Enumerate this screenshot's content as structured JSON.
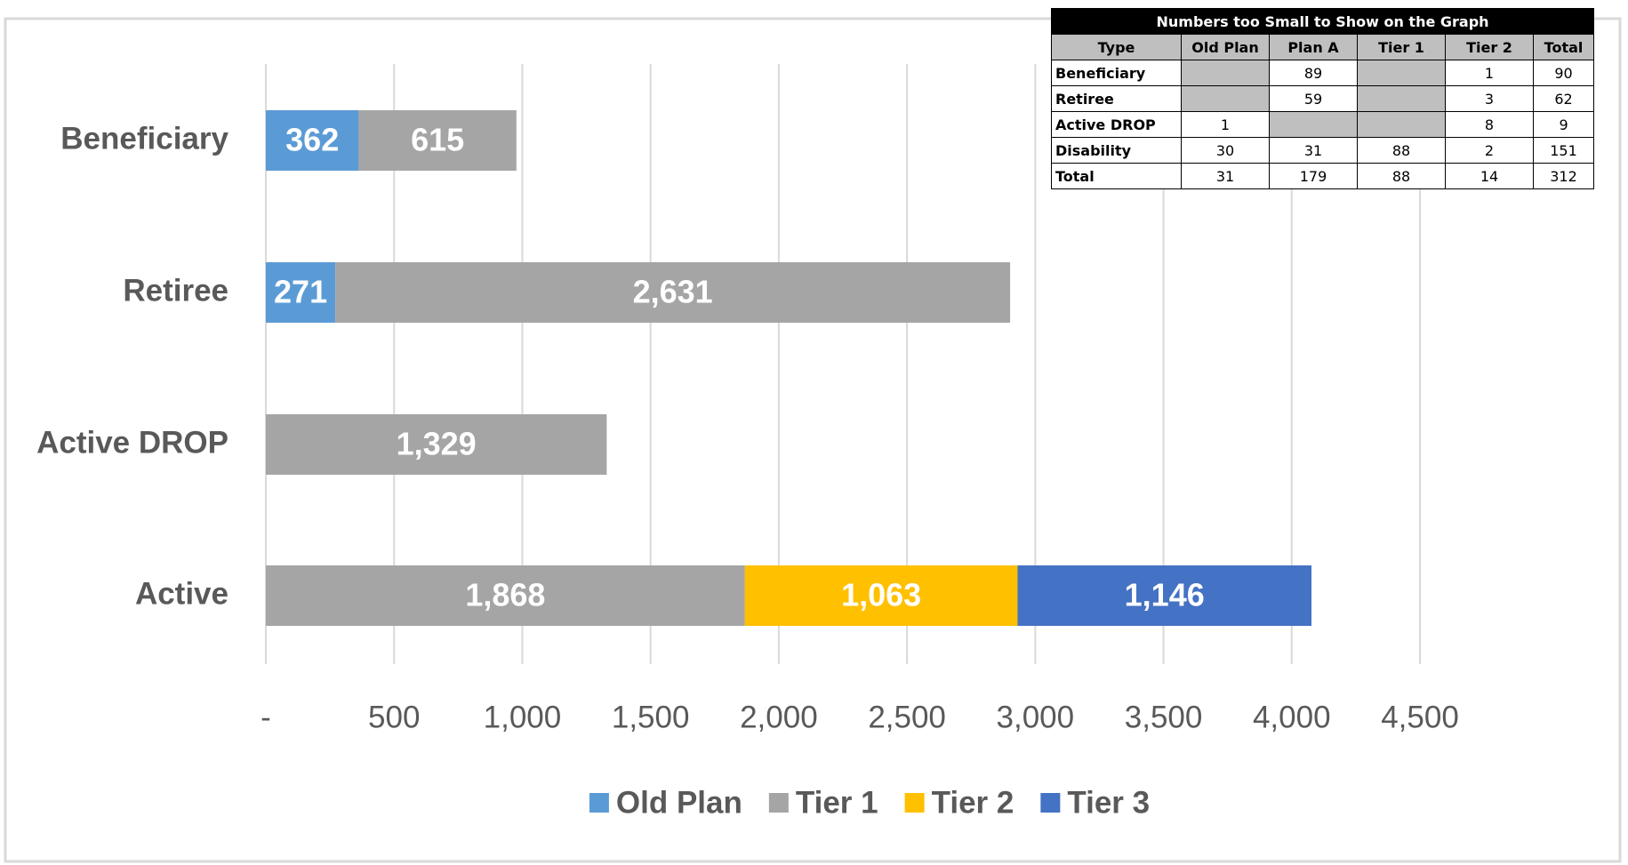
{
  "chart_data": {
    "type": "bar",
    "orientation": "horizontal",
    "stacked": true,
    "categories": [
      "Beneficiary",
      "Retiree",
      "Active DROP",
      "Active"
    ],
    "series": [
      {
        "name": "Old Plan",
        "color": "#5b9bd5",
        "values": [
          362,
          271,
          null,
          null
        ],
        "value_labels": [
          "362",
          "271",
          null,
          null
        ]
      },
      {
        "name": "Tier 1",
        "color": "#a5a5a5",
        "values": [
          615,
          2631,
          1329,
          1868
        ],
        "value_labels": [
          "615",
          "2,631",
          "1,329",
          "1,868"
        ]
      },
      {
        "name": "Tier 2",
        "color": "#ffc000",
        "values": [
          null,
          null,
          null,
          1063
        ],
        "value_labels": [
          null,
          null,
          null,
          "1,063"
        ]
      },
      {
        "name": "Tier 3",
        "color": "#4472c4",
        "values": [
          null,
          null,
          null,
          1146
        ],
        "value_labels": [
          null,
          null,
          null,
          "1,146"
        ]
      }
    ],
    "xlim": [
      0,
      4500
    ],
    "xticks": [
      {
        "value": 0,
        "label": "-"
      },
      500,
      {
        "value": 1000,
        "label": "1,000"
      },
      {
        "value": 1500,
        "label": "1,500"
      },
      {
        "value": 2000,
        "label": "2,000"
      },
      {
        "value": 2500,
        "label": "2,500"
      },
      {
        "value": 3000,
        "label": "3,000"
      },
      {
        "value": 3500,
        "label": "3,500"
      },
      {
        "value": 4000,
        "label": "4,000"
      },
      {
        "value": 4500,
        "label": "4,500"
      }
    ],
    "grid": true,
    "legend": "bottom"
  },
  "table": {
    "title": "Numbers too Small to Show on the Graph",
    "header": [
      "Type",
      "Old Plan",
      "Plan A",
      "Tier 1",
      "Tier 2",
      "Total"
    ],
    "rows": [
      [
        "Beneficiary",
        null,
        89,
        null,
        1,
        90
      ],
      [
        "Retiree",
        null,
        59,
        null,
        3,
        62
      ],
      [
        "Active DROP",
        1,
        null,
        null,
        8,
        9
      ],
      [
        "Disability",
        30,
        31,
        88,
        2,
        151
      ],
      [
        "Total",
        31,
        179,
        88,
        14,
        312
      ]
    ]
  }
}
